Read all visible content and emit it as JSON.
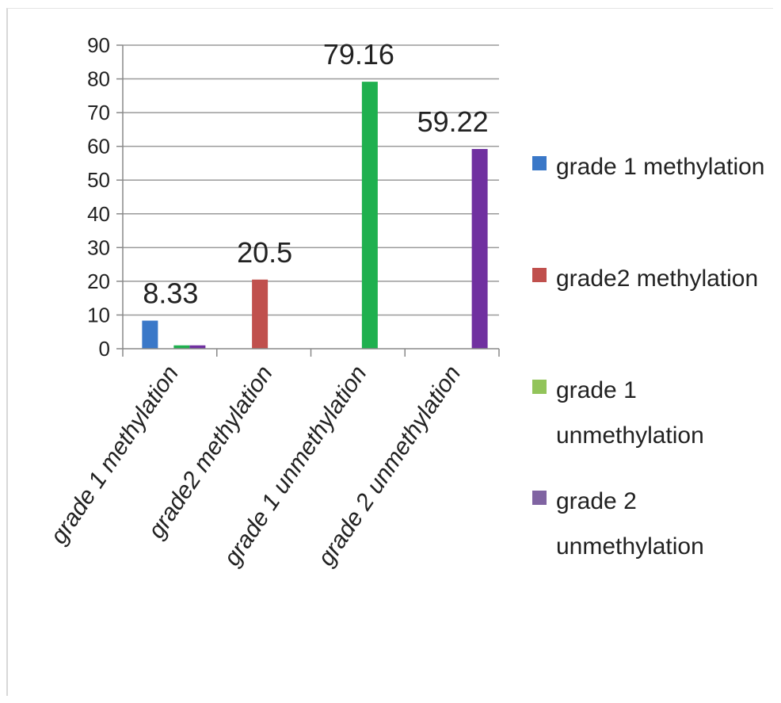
{
  "chart_data": {
    "type": "bar",
    "categories": [
      "grade 1 methylation",
      "grade2 methylation",
      "grade 1 unmethylation",
      "grade 2 unmethylation"
    ],
    "series": [
      {
        "name": "grade 1 methylation",
        "color": "#3a78c8",
        "values": [
          8.33,
          0,
          0,
          0
        ]
      },
      {
        "name": "grade2 methylation",
        "color": "#c0504d",
        "values": [
          0,
          20.5,
          0,
          0
        ]
      },
      {
        "name": "grade 1 unmethylation",
        "color": "#1fb04f",
        "values": [
          1,
          0,
          79.16,
          0
        ]
      },
      {
        "name": "grade 2 unmethylation",
        "color": "#7030a0",
        "values": [
          1,
          0,
          0,
          59.22
        ]
      }
    ],
    "data_labels": [
      "8.33",
      "20.5",
      "79.16",
      "59.22"
    ],
    "ylim": [
      0,
      90
    ],
    "yticks": [
      0,
      10,
      20,
      30,
      40,
      50,
      60,
      70,
      80,
      90
    ],
    "grid": true,
    "legend_position": "right",
    "legend": [
      {
        "lines": [
          "grade 1 methylation"
        ],
        "color": "#3a78c8"
      },
      {
        "lines": [
          "grade2 methylation"
        ],
        "color": "#c0504d"
      },
      {
        "lines": [
          "grade 1",
          "unmethylation"
        ],
        "color": "#92c45a"
      },
      {
        "lines": [
          "grade 2",
          "unmethylation"
        ],
        "color": "#8064a2"
      }
    ]
  }
}
